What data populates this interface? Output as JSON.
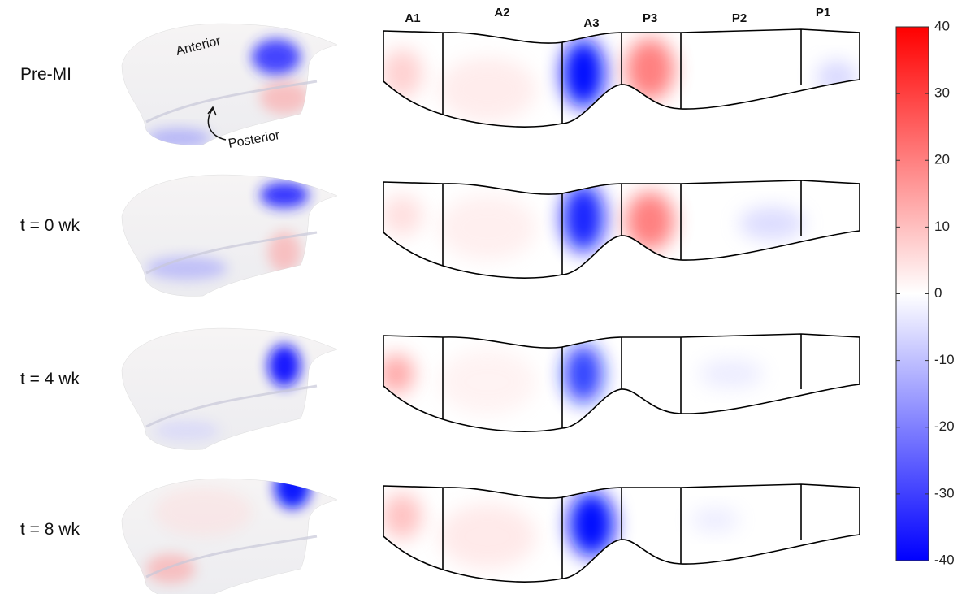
{
  "rows": [
    {
      "label": "Pre-MI"
    },
    {
      "label": "t = 0 wk"
    },
    {
      "label": "t = 4 wk"
    },
    {
      "label": "t = 8 wk"
    }
  ],
  "segments": [
    "A1",
    "A2",
    "A3",
    "P3",
    "P2",
    "P1"
  ],
  "annotations": {
    "anterior": "Anterior",
    "posterior": "Posterior"
  },
  "colorbar": {
    "lim": [
      -40,
      40
    ],
    "ticks": [
      40,
      30,
      20,
      10,
      0,
      -10,
      -20,
      -30,
      -40
    ],
    "colors": [
      "#0000ff",
      "#ffffff",
      "#ff0000"
    ]
  }
}
